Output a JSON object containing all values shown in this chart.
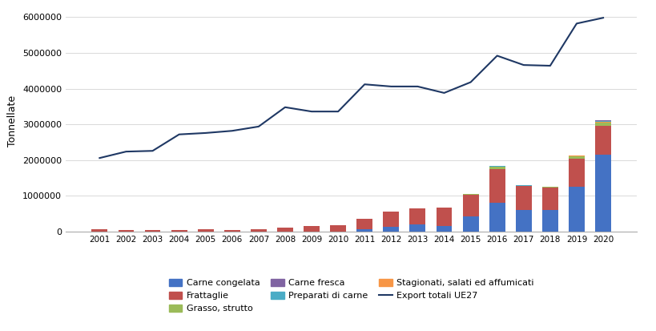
{
  "years": [
    2001,
    2002,
    2003,
    2004,
    2005,
    2006,
    2007,
    2008,
    2009,
    2010,
    2011,
    2012,
    2013,
    2014,
    2015,
    2016,
    2017,
    2018,
    2019,
    2020
  ],
  "carne_congelata": [
    0,
    0,
    0,
    0,
    0,
    0,
    0,
    0,
    0,
    0,
    80000,
    130000,
    200000,
    160000,
    420000,
    800000,
    600000,
    600000,
    1250000,
    2150000
  ],
  "frattaglie": [
    60000,
    50000,
    50000,
    50000,
    60000,
    50000,
    80000,
    120000,
    150000,
    190000,
    290000,
    440000,
    460000,
    520000,
    620000,
    960000,
    680000,
    640000,
    800000,
    820000
  ],
  "grasso_strutto": [
    0,
    0,
    0,
    0,
    0,
    0,
    0,
    0,
    0,
    0,
    0,
    0,
    0,
    0,
    20000,
    60000,
    10000,
    10000,
    60000,
    80000
  ],
  "carne_fresca": [
    0,
    0,
    0,
    0,
    0,
    0,
    0,
    0,
    0,
    0,
    0,
    0,
    0,
    0,
    0,
    0,
    0,
    0,
    0,
    30000
  ],
  "preparati_carne": [
    0,
    0,
    0,
    0,
    0,
    0,
    0,
    0,
    0,
    0,
    0,
    0,
    0,
    0,
    0,
    10000,
    10000,
    10000,
    10000,
    20000
  ],
  "stagionati": [
    0,
    0,
    0,
    0,
    0,
    0,
    0,
    0,
    0,
    0,
    0,
    0,
    0,
    0,
    0,
    0,
    0,
    0,
    10000,
    20000
  ],
  "export_totale_ue27": [
    2060000,
    2240000,
    2260000,
    2720000,
    2760000,
    2820000,
    2940000,
    3480000,
    3360000,
    3360000,
    4120000,
    4060000,
    4060000,
    3880000,
    4180000,
    4920000,
    4660000,
    4640000,
    5820000,
    5980000
  ],
  "colors": {
    "carne_congelata": "#4472c4",
    "frattaglie": "#c0504d",
    "grasso_strutto": "#9bbb59",
    "carne_fresca": "#8064a2",
    "preparati_carne": "#4bacc6",
    "stagionati": "#f79646",
    "export_line": "#1f3864"
  },
  "ylabel": "Tonnellate",
  "ylim": [
    0,
    6200000
  ],
  "yticks": [
    0,
    1000000,
    2000000,
    3000000,
    4000000,
    5000000,
    6000000
  ],
  "legend_labels": {
    "carne_congelata": "Carne congelata",
    "frattaglie": "Frattaglie",
    "grasso_strutto": "Grasso, strutto",
    "carne_fresca": "Carne fresca",
    "preparati_carne": "Preparati di carne",
    "stagionati": "Stagionati, salati ed affumicati",
    "export_line": "Export totali UE27"
  },
  "bar_width": 0.6,
  "background_color": "#ffffff",
  "grid_color": "#d9d9d9"
}
